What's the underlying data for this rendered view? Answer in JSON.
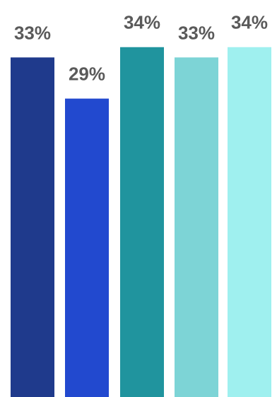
{
  "chart_data": {
    "type": "bar",
    "categories": [
      "",
      "",
      "",
      "",
      ""
    ],
    "values": [
      33,
      29,
      34,
      33,
      34
    ],
    "data_labels": [
      "33%",
      "29%",
      "34%",
      "33%",
      "34%"
    ],
    "colors": [
      "#1f3a8c",
      "#2249cf",
      "#20949e",
      "#7dd4d6",
      "#9ff0ef"
    ],
    "ylim": [
      0,
      34.6
    ],
    "legend": "none",
    "grid": false
  }
}
